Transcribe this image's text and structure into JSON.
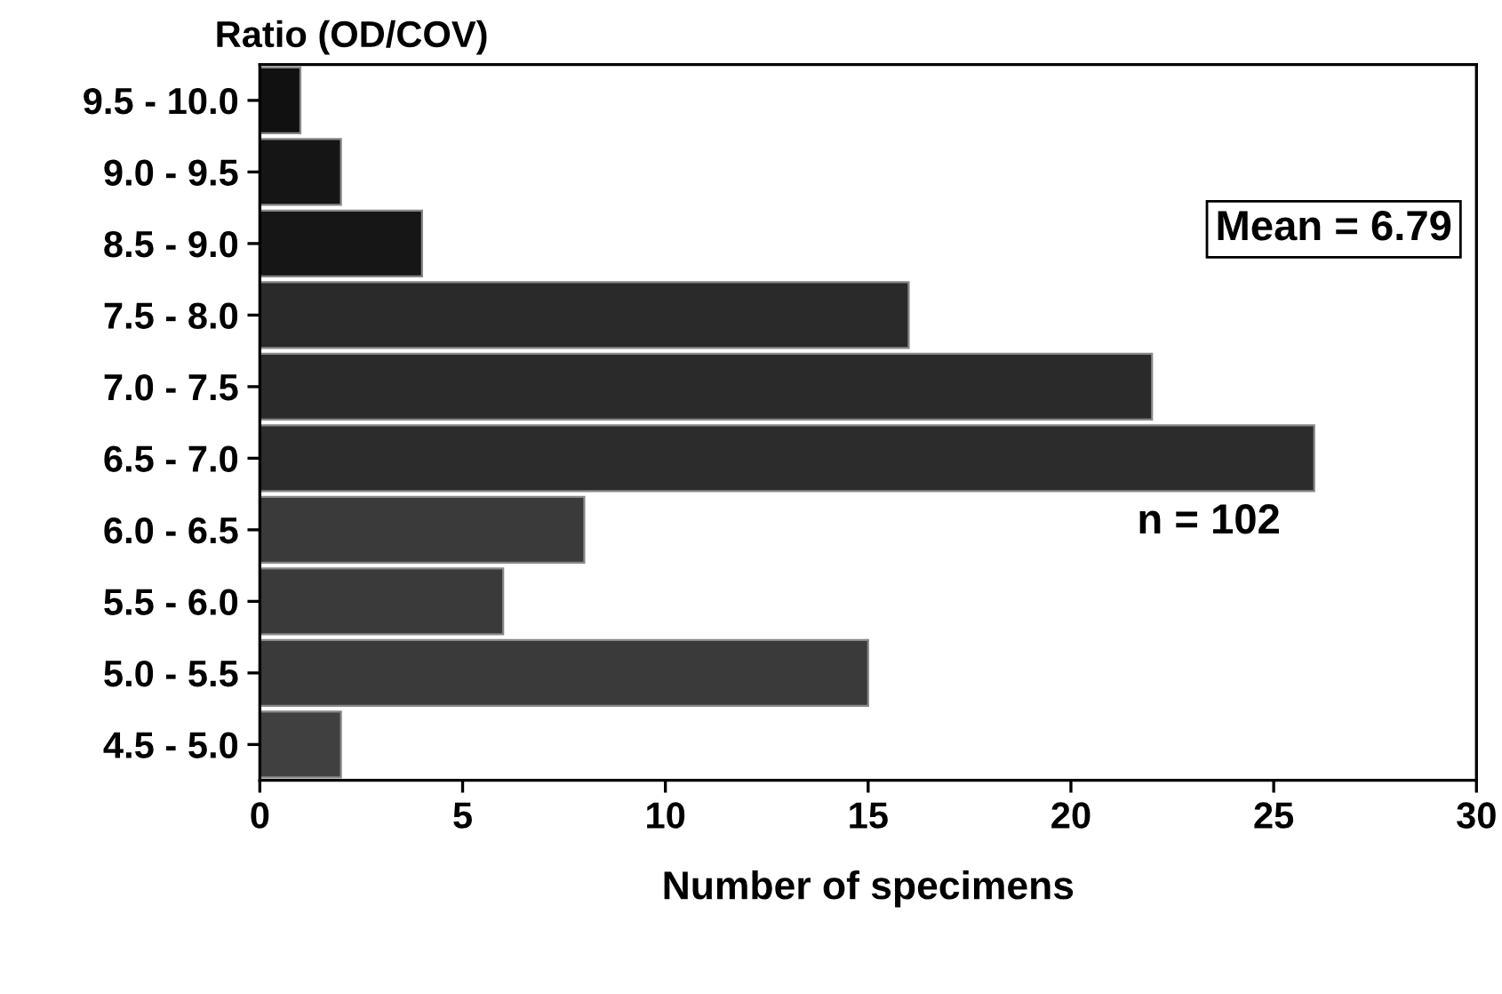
{
  "chart_data": {
    "type": "bar",
    "orientation": "horizontal",
    "ylabel": "Ratio (OD/COV)",
    "xlabel": "Number of specimens",
    "categories": [
      "9.5 - 10.0",
      "9.0 - 9.5",
      "8.5 - 9.0",
      "7.5 - 8.0",
      "7.0 - 7.5",
      "6.5 - 7.0",
      "6.0 - 6.5",
      "5.5 - 6.0",
      "5.0 - 5.5",
      "4.5 - 5.0"
    ],
    "values": [
      1,
      2,
      4,
      16,
      22,
      26,
      8,
      6,
      15,
      2
    ],
    "colors": [
      "#111111",
      "#151515",
      "#161616",
      "#2a2a2a",
      "#2a2a2a",
      "#2c2c2c",
      "#3a3a3a",
      "#3a3a3a",
      "#3a3a3a",
      "#404040"
    ],
    "xlim": [
      0,
      30
    ],
    "xticks": [
      0,
      5,
      10,
      15,
      20,
      25,
      30
    ],
    "grid": false,
    "legend": false,
    "annotations": [
      "Mean = 6.79",
      "n = 102"
    ]
  }
}
